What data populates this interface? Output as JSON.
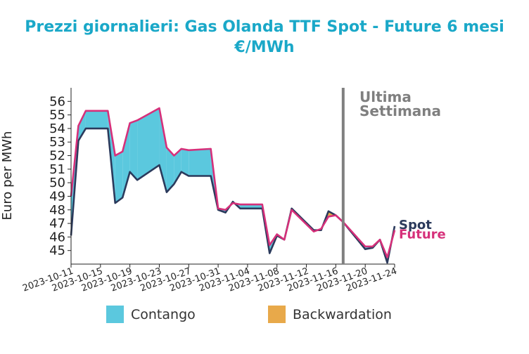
{
  "colors": {
    "title": "#1aa8c8",
    "spot": "#2b3a5c",
    "future": "#d6307a",
    "contango": "#5bc8de",
    "backwardation": "#e8a94a",
    "marker": "#7f7f7f"
  },
  "chart_data": {
    "type": "area",
    "title_line1": "Prezzi giornalieri: Gas Olanda TTF Spot - Future 6 mesi",
    "title_line2": "€/MWh",
    "ylabel": "Euro per MWh",
    "ylim": [
      44,
      57
    ],
    "yticks": [
      45,
      46,
      47,
      48,
      49,
      50,
      51,
      52,
      53,
      54,
      55,
      56
    ],
    "xlim": [
      "2023-10-11",
      "2023-11-24"
    ],
    "xticks": [
      "2023-10-11",
      "2023-10-15",
      "2023-10-19",
      "2023-10-23",
      "2023-10-27",
      "2023-10-31",
      "2023-11-04",
      "2023-11-08",
      "2023-11-12",
      "2023-11-16",
      "2023-11-20",
      "2023-11-24"
    ],
    "x": [
      "2023-10-11",
      "2023-10-12",
      "2023-10-13",
      "2023-10-16",
      "2023-10-17",
      "2023-10-18",
      "2023-10-19",
      "2023-10-20",
      "2023-10-23",
      "2023-10-24",
      "2023-10-25",
      "2023-10-26",
      "2023-10-27",
      "2023-10-30",
      "2023-10-31",
      "2023-11-01",
      "2023-11-02",
      "2023-11-03",
      "2023-11-06",
      "2023-11-07",
      "2023-11-08",
      "2023-11-09",
      "2023-11-10",
      "2023-11-13",
      "2023-11-14",
      "2023-11-15",
      "2023-11-16",
      "2023-11-17",
      "2023-11-20",
      "2023-11-21",
      "2023-11-22",
      "2023-11-23",
      "2023-11-24"
    ],
    "series": [
      {
        "name": "Spot",
        "values": [
          46.1,
          53.1,
          54.0,
          54.0,
          48.5,
          48.9,
          50.8,
          50.2,
          51.3,
          49.3,
          49.9,
          50.8,
          50.5,
          50.5,
          48.0,
          47.8,
          48.6,
          48.1,
          48.1,
          44.8,
          46.1,
          45.8,
          48.1,
          46.5,
          46.5,
          47.9,
          47.6,
          47.1,
          45.1,
          45.2,
          45.8,
          44.1,
          46.8
        ]
      },
      {
        "name": "Future",
        "values": [
          49.0,
          54.2,
          55.3,
          55.3,
          52.0,
          52.3,
          54.4,
          54.6,
          55.5,
          52.6,
          52.0,
          52.5,
          52.4,
          52.5,
          48.1,
          48.0,
          48.5,
          48.4,
          48.4,
          45.4,
          46.2,
          45.8,
          48.0,
          46.4,
          46.6,
          47.5,
          47.6,
          47.1,
          45.3,
          45.3,
          45.8,
          44.5,
          46.5
        ]
      }
    ],
    "marker_date": "2023-11-17",
    "annotation_line1": "Ultima",
    "annotation_line2": "Settimana",
    "legend": [
      {
        "label": "Contango",
        "color": "#5bc8de"
      },
      {
        "label": "Backwardation",
        "color": "#e8a94a"
      }
    ],
    "legend_position": "bottom",
    "grid": false
  }
}
